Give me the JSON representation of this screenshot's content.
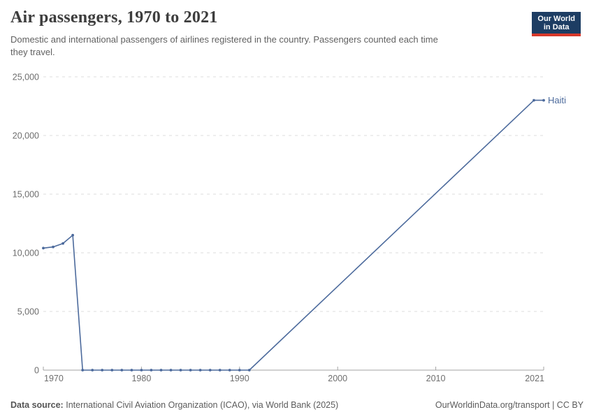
{
  "header": {
    "title": "Air passengers, 1970 to 2021",
    "subtitle_lines": [
      "Domestic and international passengers of airlines registered in the country. Passengers counted each time",
      "they travel."
    ],
    "subtitle_full": "Domestic and international passengers of airlines registered in the country. Passengers counted each time they travel.",
    "logo": {
      "line1": "Our World",
      "line2": "in Data"
    }
  },
  "chart_data": {
    "type": "line",
    "title": "Air passengers, 1970 to 2021",
    "xlabel": "",
    "ylabel": "",
    "xlim": [
      1970,
      2021
    ],
    "ylim": [
      0,
      25000
    ],
    "grid": "horizontal-dashed",
    "legend_position": "end-of-line",
    "yticks": [
      0,
      5000,
      10000,
      15000,
      20000,
      25000
    ],
    "ytick_labels": [
      "0",
      "5,000",
      "10,000",
      "15,000",
      "20,000",
      "25,000"
    ],
    "xticks": [
      1970,
      1980,
      1990,
      2000,
      2010,
      2021
    ],
    "xtick_labels": [
      "1970",
      "1980",
      "1990",
      "2000",
      "2010",
      "2021"
    ],
    "series": [
      {
        "name": "Haiti",
        "color": "#4c6a9c",
        "points": [
          [
            1970,
            10400
          ],
          [
            1971,
            10500
          ],
          [
            1972,
            10800
          ],
          [
            1973,
            11500
          ],
          [
            1974,
            0
          ],
          [
            1975,
            0
          ],
          [
            1976,
            0
          ],
          [
            1977,
            0
          ],
          [
            1978,
            0
          ],
          [
            1979,
            0
          ],
          [
            1980,
            0
          ],
          [
            1981,
            0
          ],
          [
            1982,
            0
          ],
          [
            1983,
            0
          ],
          [
            1984,
            0
          ],
          [
            1985,
            0
          ],
          [
            1986,
            0
          ],
          [
            1987,
            0
          ],
          [
            1988,
            0
          ],
          [
            1989,
            0
          ],
          [
            1990,
            0
          ],
          [
            1991,
            0
          ],
          [
            2020,
            23000
          ],
          [
            2021,
            23000
          ]
        ]
      }
    ]
  },
  "footer": {
    "source_label": "Data source:",
    "source_text": "International Civil Aviation Organization (ICAO), via World Bank (2025)",
    "credit": "OurWorldinData.org/transport | CC BY"
  },
  "colors": {
    "line": "#4c6a9c",
    "gridline": "#dedede",
    "axis": "#a3a3a3",
    "logo_bg": "#1d3d63",
    "logo_accent": "#d7382a",
    "title_text": "#3d3d3d",
    "subtitle_text": "#616161",
    "tick_text": "#6e6e6e"
  }
}
